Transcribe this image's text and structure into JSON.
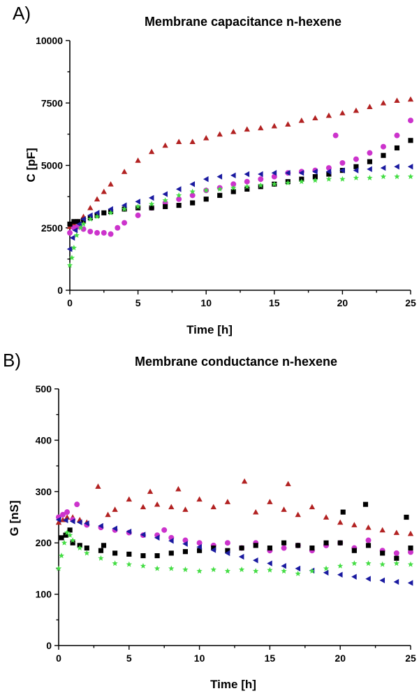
{
  "chart_data": [
    {
      "panel": "A)",
      "type": "scatter",
      "title": "Membrane capacitance n-hexene",
      "xlabel": "Time [h]",
      "ylabel": "C [pF]",
      "xlim": [
        0,
        25
      ],
      "ylim": [
        0,
        10000
      ],
      "xticks": [
        0,
        5,
        10,
        15,
        20,
        25
      ],
      "yticks": [
        0,
        2500,
        5000,
        7500,
        10000
      ],
      "series": [
        {
          "marker": "triangle-up",
          "color": "#b22222",
          "x": [
            0,
            0.3,
            0.6,
            1,
            1.5,
            2,
            2.5,
            3,
            4,
            5,
            6,
            7,
            8,
            9,
            10,
            11,
            12,
            13,
            14,
            15,
            16,
            17,
            18,
            19,
            20,
            21,
            22,
            23,
            24,
            25
          ],
          "y": [
            2550,
            2650,
            2750,
            2950,
            3300,
            3650,
            3950,
            4250,
            4750,
            5200,
            5550,
            5800,
            5950,
            5950,
            6100,
            6250,
            6350,
            6450,
            6500,
            6580,
            6650,
            6800,
            6900,
            7000,
            7100,
            7200,
            7350,
            7500,
            7600,
            7650
          ]
        },
        {
          "marker": "circle",
          "color": "#cc33cc",
          "x": [
            0,
            0.3,
            0.6,
            1,
            1.5,
            2,
            2.5,
            3,
            3.5,
            4,
            5,
            6,
            7,
            8,
            9,
            10,
            11,
            12,
            13,
            14,
            15,
            16,
            17,
            18,
            19,
            19.5,
            20,
            21,
            22,
            23,
            24,
            25
          ],
          "y": [
            2300,
            2500,
            2550,
            2450,
            2350,
            2300,
            2300,
            2250,
            2500,
            2700,
            3000,
            3300,
            3500,
            3650,
            3800,
            4000,
            4100,
            4250,
            4350,
            4450,
            4550,
            4700,
            4750,
            4800,
            4900,
            6200,
            5100,
            5250,
            5500,
            5750,
            6200,
            6800
          ]
        },
        {
          "marker": "square",
          "color": "#000000",
          "x": [
            0,
            0.3,
            0.6,
            1,
            1.5,
            2,
            2.5,
            3,
            4,
            5,
            6,
            7,
            8,
            9,
            10,
            11,
            12,
            13,
            14,
            15,
            16,
            17,
            18,
            19,
            20,
            21,
            22,
            23,
            24,
            25
          ],
          "y": [
            2650,
            2750,
            2750,
            2800,
            2900,
            3000,
            3100,
            3150,
            3250,
            3300,
            3300,
            3350,
            3400,
            3500,
            3650,
            3800,
            3950,
            4050,
            4150,
            4250,
            4350,
            4450,
            4550,
            4650,
            4800,
            4950,
            5150,
            5400,
            5700,
            6000
          ]
        },
        {
          "marker": "triangle-left",
          "color": "#1a1aa0",
          "x": [
            0,
            0.2,
            0.4,
            0.7,
            1,
            1.5,
            2,
            3,
            4,
            5,
            6,
            7,
            8,
            9,
            10,
            11,
            12,
            13,
            14,
            15,
            16,
            17,
            18,
            19,
            20,
            21,
            22,
            23,
            24,
            25
          ],
          "y": [
            1650,
            2100,
            2400,
            2650,
            2850,
            3000,
            3100,
            3250,
            3400,
            3550,
            3700,
            3850,
            4050,
            4250,
            4450,
            4550,
            4600,
            4650,
            4650,
            4700,
            4700,
            4700,
            4750,
            4750,
            4800,
            4800,
            4850,
            4900,
            4950,
            4950
          ]
        },
        {
          "marker": "star",
          "color": "#44dd44",
          "x": [
            0,
            0.15,
            0.3,
            0.5,
            0.8,
            1,
            1.5,
            2,
            3,
            4,
            5,
            6,
            7,
            8,
            9,
            10,
            11,
            12,
            13,
            14,
            15,
            16,
            17,
            18,
            19,
            20,
            21,
            22,
            23,
            24,
            25
          ],
          "y": [
            1000,
            1300,
            1700,
            2200,
            2500,
            2650,
            2850,
            2950,
            3100,
            3250,
            3350,
            3450,
            3600,
            3800,
            3950,
            4000,
            4050,
            4100,
            4150,
            4200,
            4250,
            4300,
            4350,
            4400,
            4450,
            4450,
            4500,
            4500,
            4550,
            4550,
            4550
          ]
        }
      ]
    },
    {
      "panel": "B)",
      "type": "scatter",
      "title": "Membrane conductance n-hexene",
      "xlabel": "Time [h]",
      "ylabel": "G [nS]",
      "xlim": [
        0,
        25
      ],
      "ylim": [
        0,
        500
      ],
      "xticks": [
        0,
        5,
        10,
        15,
        20,
        25
      ],
      "yticks": [
        0,
        100,
        200,
        300,
        400,
        500
      ],
      "series": [
        {
          "marker": "triangle-up",
          "color": "#b22222",
          "x": [
            0,
            0.3,
            0.6,
            1,
            1.5,
            2,
            2.8,
            3.5,
            4,
            5,
            6,
            6.5,
            7,
            8,
            8.5,
            9,
            10,
            11,
            12,
            13.2,
            14,
            15,
            16,
            16.3,
            17,
            18,
            19,
            20,
            21,
            22,
            23,
            24,
            25
          ],
          "y": [
            240,
            245,
            250,
            250,
            245,
            240,
            310,
            255,
            265,
            285,
            270,
            300,
            275,
            270,
            305,
            265,
            285,
            270,
            280,
            320,
            260,
            280,
            265,
            315,
            255,
            270,
            250,
            240,
            235,
            230,
            225,
            220,
            218
          ]
        },
        {
          "marker": "circle",
          "color": "#cc33cc",
          "x": [
            0,
            0.3,
            0.6,
            1,
            1.3,
            2,
            3,
            4,
            5,
            6,
            7,
            7.5,
            8,
            9,
            10,
            11,
            12,
            13,
            14,
            15,
            16,
            17,
            18,
            19,
            20,
            21,
            22,
            23,
            24,
            25
          ],
          "y": [
            250,
            255,
            260,
            245,
            275,
            235,
            230,
            225,
            220,
            215,
            215,
            225,
            210,
            205,
            200,
            195,
            200,
            190,
            200,
            185,
            190,
            195,
            185,
            195,
            200,
            190,
            205,
            185,
            180,
            182
          ]
        },
        {
          "marker": "square",
          "color": "#000000",
          "x": [
            0.2,
            0.5,
            0.8,
            1,
            1.5,
            2,
            3,
            3.2,
            4,
            5,
            6,
            7,
            8,
            9,
            10,
            11,
            12,
            13,
            14,
            15,
            16,
            17,
            18,
            19,
            20,
            20.2,
            21,
            21.8,
            22,
            23,
            24,
            24.7,
            25
          ],
          "y": [
            210,
            215,
            225,
            200,
            195,
            190,
            185,
            195,
            180,
            178,
            175,
            175,
            180,
            183,
            185,
            190,
            185,
            190,
            195,
            190,
            200,
            195,
            190,
            200,
            200,
            260,
            185,
            275,
            195,
            180,
            170,
            250,
            190
          ]
        },
        {
          "marker": "triangle-left",
          "color": "#1a1aa0",
          "x": [
            0,
            0.5,
            1,
            1.5,
            2,
            3,
            4,
            5,
            6,
            7,
            8,
            9,
            10,
            11,
            12,
            13,
            14,
            15,
            16,
            17,
            18,
            19,
            20,
            21,
            22,
            23,
            24,
            25
          ],
          "y": [
            245,
            244,
            242,
            240,
            238,
            233,
            228,
            222,
            216,
            210,
            204,
            198,
            192,
            186,
            180,
            173,
            166,
            160,
            155,
            150,
            146,
            142,
            138,
            134,
            130,
            127,
            124,
            122
          ]
        },
        {
          "marker": "star",
          "color": "#44dd44",
          "x": [
            0,
            0.2,
            0.4,
            0.6,
            0.8,
            1,
            1.5,
            2,
            3,
            4,
            5,
            6,
            7,
            8,
            9,
            10,
            11,
            12,
            13,
            14,
            15,
            16,
            17,
            18,
            19,
            20,
            21,
            22,
            23,
            24,
            25
          ],
          "y": [
            150,
            175,
            200,
            220,
            215,
            205,
            190,
            180,
            170,
            160,
            158,
            155,
            150,
            150,
            148,
            145,
            148,
            145,
            148,
            145,
            147,
            145,
            140,
            145,
            150,
            155,
            160,
            160,
            158,
            160,
            158
          ]
        }
      ]
    }
  ]
}
